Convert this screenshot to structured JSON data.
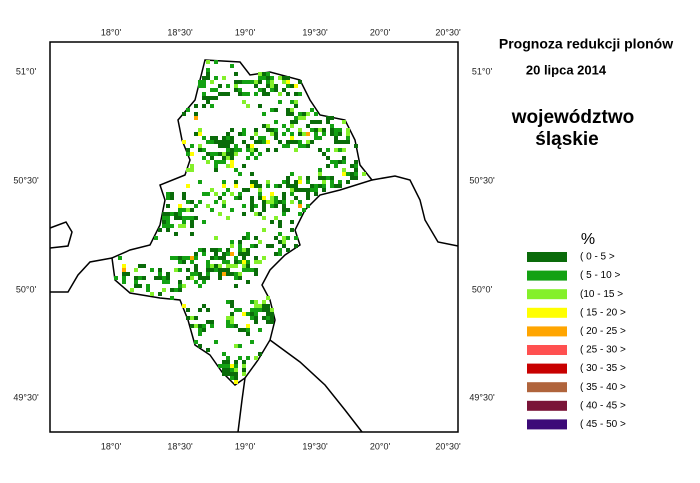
{
  "header": {
    "title": "Prognoza redukcji plonów",
    "date": "20 lipca 2014",
    "region_line1": "województwo",
    "region_line2": "śląskie"
  },
  "map": {
    "lon_ticks": [
      "18°0'",
      "18°30'",
      "19°0'",
      "19°30'",
      "20°0'",
      "20°30'"
    ],
    "lat_ticks": [
      "51°0'",
      "50°30'",
      "50°0'",
      "49°30'"
    ]
  },
  "legend": {
    "title": "%",
    "items": [
      {
        "label": "( 0 - 5 >",
        "color": "#0a6b0a"
      },
      {
        "label": "( 5 - 10 >",
        "color": "#13a113"
      },
      {
        "label": "(10 - 15 >",
        "color": "#84f02a"
      },
      {
        "label": "( 15 - 20 >",
        "color": "#ffff00"
      },
      {
        "label": "( 20 - 25 >",
        "color": "#ffa500"
      },
      {
        "label": "( 25 - 30 >",
        "color": "#ff5050"
      },
      {
        "label": "( 30 - 35 >",
        "color": "#c80000"
      },
      {
        "label": "( 35 - 40 >",
        "color": "#b0643c"
      },
      {
        "label": "( 40 - 45 >",
        "color": "#7a1438"
      },
      {
        "label": "( 45 - 50 >",
        "color": "#3c0a78"
      }
    ]
  }
}
